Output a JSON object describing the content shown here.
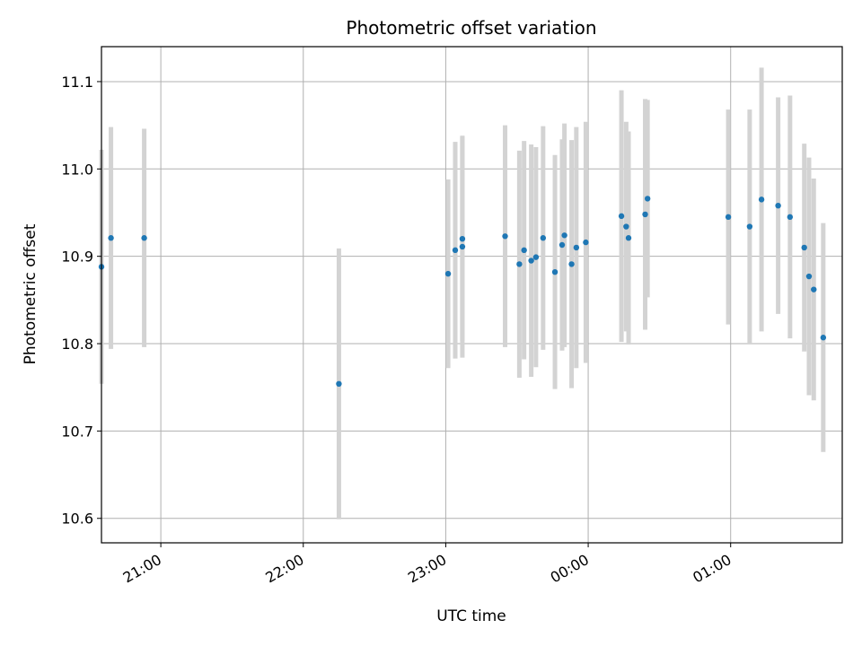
{
  "chart_data": {
    "type": "scatter",
    "title": "Photometric offset variation",
    "xlabel": "UTC time",
    "ylabel": "Photometric offset",
    "xlim": [
      "20:35",
      "01:47"
    ],
    "ylim": [
      10.572,
      11.14
    ],
    "x_ticks": [
      "21:00",
      "22:00",
      "23:00",
      "00:00",
      "01:00"
    ],
    "y_ticks": [
      10.6,
      10.7,
      10.8,
      10.9,
      11.0,
      11.1
    ],
    "grid": true,
    "legend": "none",
    "colors": {
      "point": "#1f77b4",
      "errorbar": "#d3d3d3",
      "grid": "#b0b0b0"
    },
    "points": [
      {
        "x": "20:35",
        "y": 10.888,
        "yerr": 0.134
      },
      {
        "x": "20:39",
        "y": 10.921,
        "yerr": 0.127
      },
      {
        "x": "20:53",
        "y": 10.921,
        "yerr": 0.125
      },
      {
        "x": "22:15",
        "y": 10.754,
        "yerr": 0.155
      },
      {
        "x": "23:01",
        "y": 10.88,
        "yerr": 0.108
      },
      {
        "x": "23:04",
        "y": 10.907,
        "yerr": 0.124
      },
      {
        "x": "23:07",
        "y": 10.92,
        "yerr": 0.117
      },
      {
        "x": "23:07",
        "y": 10.911,
        "yerr": 0.127
      },
      {
        "x": "23:25",
        "y": 10.923,
        "yerr": 0.127
      },
      {
        "x": "23:31",
        "y": 10.891,
        "yerr": 0.13
      },
      {
        "x": "23:33",
        "y": 10.907,
        "yerr": 0.125
      },
      {
        "x": "23:36",
        "y": 10.895,
        "yerr": 0.133
      },
      {
        "x": "23:38",
        "y": 10.899,
        "yerr": 0.126
      },
      {
        "x": "23:41",
        "y": 10.921,
        "yerr": 0.128
      },
      {
        "x": "23:46",
        "y": 10.882,
        "yerr": 0.134
      },
      {
        "x": "23:49",
        "y": 10.913,
        "yerr": 0.121
      },
      {
        "x": "23:50",
        "y": 10.924,
        "yerr": 0.128
      },
      {
        "x": "23:53",
        "y": 10.891,
        "yerr": 0.142
      },
      {
        "x": "23:55",
        "y": 10.91,
        "yerr": 0.138
      },
      {
        "x": "23:59",
        "y": 10.916,
        "yerr": 0.138
      },
      {
        "x": "00:14",
        "y": 10.946,
        "yerr": 0.144
      },
      {
        "x": "00:16",
        "y": 10.934,
        "yerr": 0.12
      },
      {
        "x": "00:17",
        "y": 10.921,
        "yerr": 0.122
      },
      {
        "x": "00:24",
        "y": 10.948,
        "yerr": 0.132
      },
      {
        "x": "00:25",
        "y": 10.966,
        "yerr": 0.113
      },
      {
        "x": "00:59",
        "y": 10.945,
        "yerr": 0.123
      },
      {
        "x": "01:08",
        "y": 10.934,
        "yerr": 0.134
      },
      {
        "x": "01:13",
        "y": 10.965,
        "yerr": 0.151
      },
      {
        "x": "01:20",
        "y": 10.958,
        "yerr": 0.124
      },
      {
        "x": "01:25",
        "y": 10.945,
        "yerr": 0.139
      },
      {
        "x": "01:31",
        "y": 10.91,
        "yerr": 0.119
      },
      {
        "x": "01:33",
        "y": 10.877,
        "yerr": 0.136
      },
      {
        "x": "01:35",
        "y": 10.862,
        "yerr": 0.127
      },
      {
        "x": "01:39",
        "y": 10.807,
        "yerr": 0.131
      }
    ]
  }
}
